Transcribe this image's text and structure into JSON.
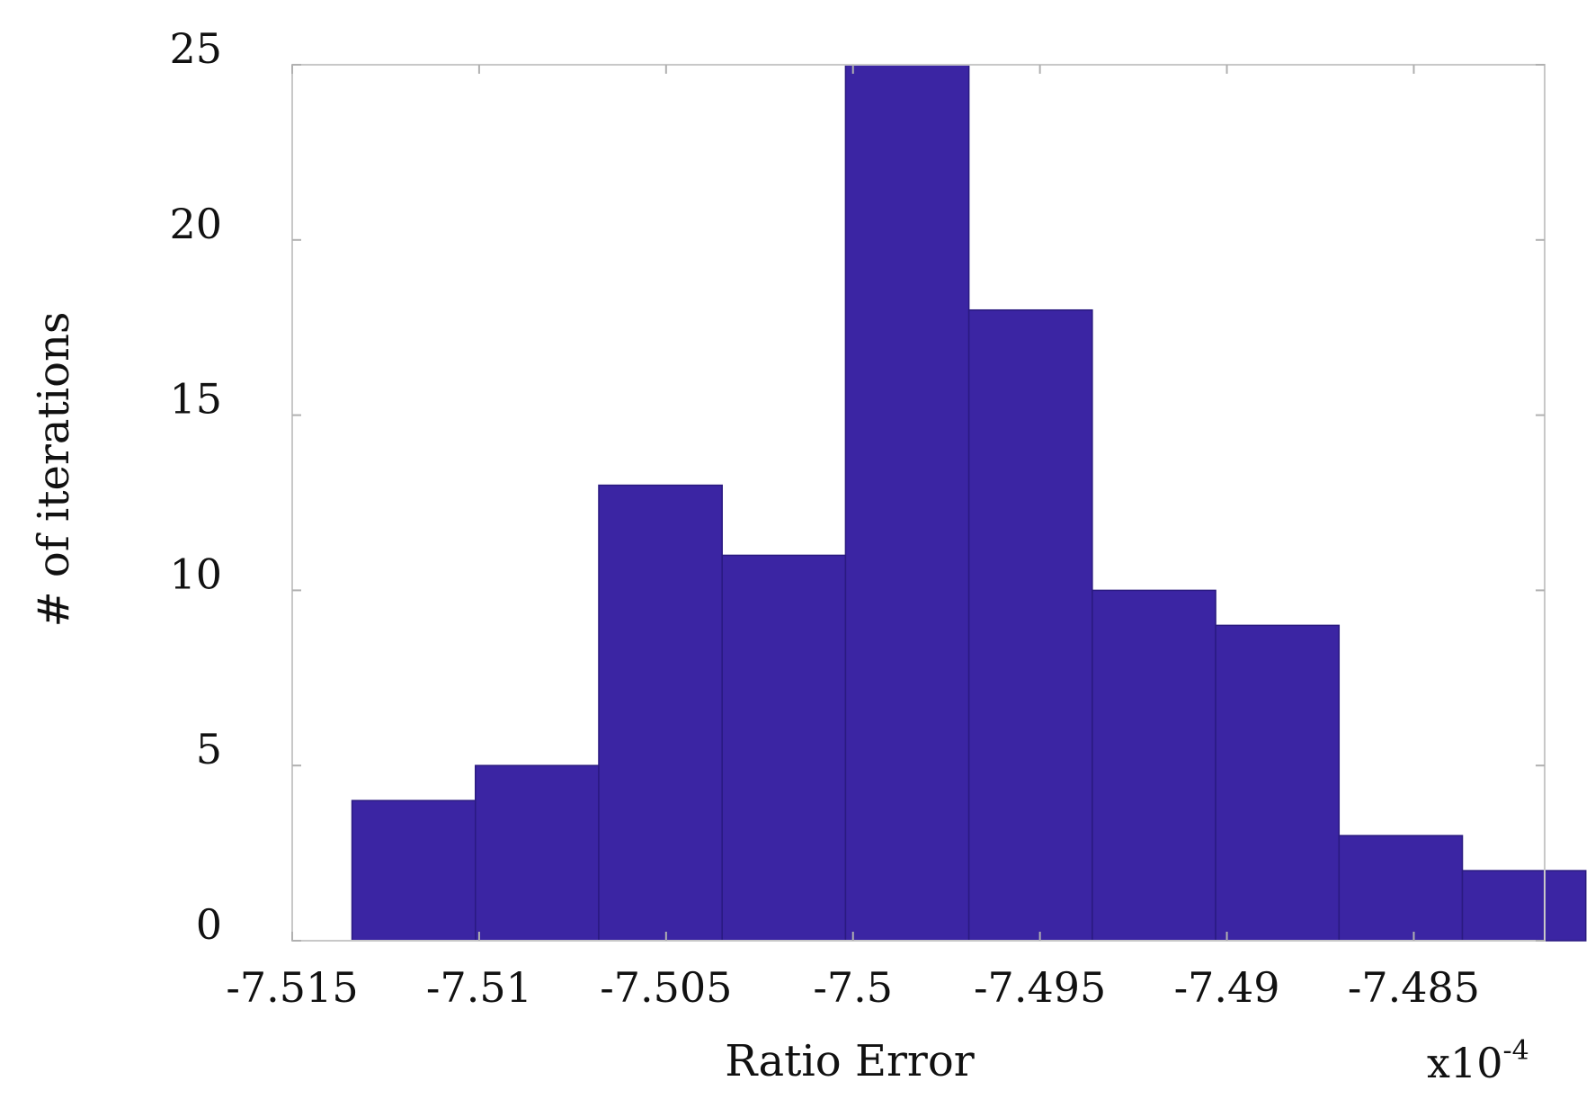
{
  "chart_data": {
    "type": "bar",
    "subtype": "histogram",
    "xlabel": "Ratio Error",
    "ylabel": "# of iterations",
    "x_exponent_label": "x10",
    "x_exponent_power": "-4",
    "xlim": [
      -7.515,
      -7.4815
    ],
    "ylim": [
      0,
      25
    ],
    "xticks": [
      -7.515,
      -7.51,
      -7.505,
      -7.5,
      -7.495,
      -7.49,
      -7.485
    ],
    "xtick_labels": [
      "-7.515",
      "-7.51",
      "-7.505",
      "-7.5",
      "-7.495",
      "-7.49",
      "-7.485"
    ],
    "yticks": [
      0,
      5,
      10,
      15,
      20,
      25
    ],
    "ytick_labels": [
      "0",
      "5",
      "10",
      "15",
      "20",
      "25"
    ],
    "bin_edges": [
      -7.5134,
      -7.5101,
      -7.5068,
      -7.5035,
      -7.5002,
      -7.4969,
      -7.4936,
      -7.4903,
      -7.487,
      -7.4837,
      -7.4804
    ],
    "values": [
      4,
      5,
      13,
      11,
      25,
      18,
      10,
      9,
      3,
      2
    ],
    "bar_color": "#3b25a3",
    "grid": false
  }
}
